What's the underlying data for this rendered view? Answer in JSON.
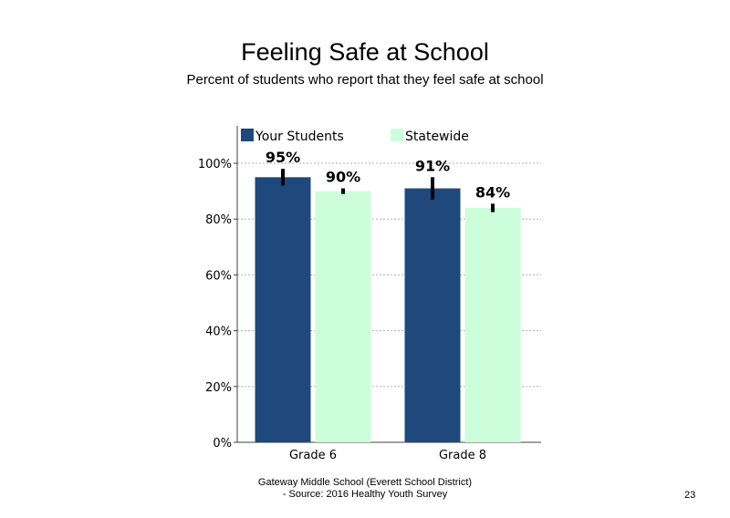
{
  "slide": {
    "title": "Feeling Safe at School",
    "subtitle": "Percent of students  who report that they feel safe at school",
    "footer_line1": "Gateway Middle  School  (Everett School District)",
    "footer_line2": "- Source: 2016 Healthy  Youth Survey",
    "page_number": "23"
  },
  "chart_data": {
    "type": "bar",
    "categories": [
      "Grade 6",
      "Grade 8"
    ],
    "series": [
      {
        "name": "Your Students",
        "values": [
          95,
          91
        ],
        "labels": [
          "95%",
          "91%"
        ],
        "error": [
          [
            92,
            98
          ],
          [
            87,
            95
          ]
        ],
        "color": "#1f497d"
      },
      {
        "name": "Statewide",
        "values": [
          90,
          84
        ],
        "labels": [
          "90%",
          "84%"
        ],
        "error": [
          [
            89,
            91
          ],
          [
            82.5,
            85.5
          ]
        ],
        "color": "#ccfedc"
      }
    ],
    "ylim": [
      0,
      110
    ],
    "yticks": [
      0,
      20,
      40,
      60,
      80,
      100
    ],
    "ytick_labels": [
      "0%",
      "20%",
      "40%",
      "60%",
      "80%",
      "100%"
    ],
    "grid": "dotted horizontal",
    "legend": "top-left",
    "xlabel": "",
    "ylabel": ""
  }
}
